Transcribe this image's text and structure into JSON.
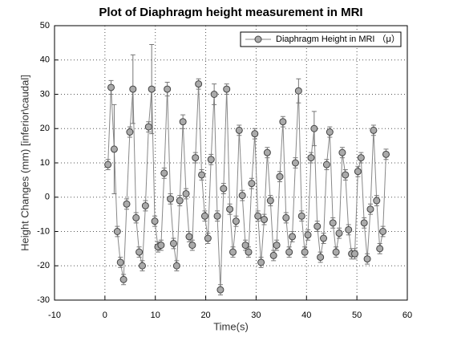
{
  "chart_data": {
    "type": "line",
    "title": "Plot of Diaphragm height measurement in MRI",
    "xlabel": "Time(s)",
    "ylabel": "Height Changes (mm) [inferior\\caudal]",
    "x": [
      0.6,
      1.22,
      1.84,
      2.46,
      3.08,
      3.7,
      4.32,
      4.94,
      5.56,
      6.18,
      6.8,
      7.42,
      8.04,
      8.66,
      9.28,
      9.9,
      10.52,
      11.14,
      11.76,
      12.38,
      13.0,
      13.62,
      14.24,
      14.86,
      15.48,
      16.1,
      16.72,
      17.34,
      17.96,
      18.58,
      19.2,
      19.82,
      20.44,
      21.06,
      21.68,
      22.3,
      22.92,
      23.54,
      24.16,
      24.78,
      25.4,
      26.02,
      26.64,
      27.26,
      27.88,
      28.5,
      29.12,
      29.74,
      30.36,
      30.98,
      31.6,
      32.22,
      32.84,
      33.46,
      34.08,
      34.7,
      35.32,
      35.94,
      36.56,
      37.18,
      37.8,
      38.42,
      39.04,
      39.66,
      40.28,
      40.9,
      41.52,
      42.14,
      42.76,
      43.38,
      44.0,
      44.62,
      45.24,
      45.86,
      46.48,
      47.1,
      47.72,
      48.34,
      48.96,
      49.58,
      50.2,
      50.82,
      51.44,
      52.06,
      52.68,
      53.3,
      53.92,
      54.54,
      55.16,
      55.78
    ],
    "series": [
      {
        "name": "Diaphragm Height in MRI （μ）",
        "color": "#aaaaaa",
        "values": [
          9.5,
          32,
          14,
          -10,
          -19,
          -24,
          -2,
          19,
          31.5,
          -6,
          -16,
          -20,
          -2.5,
          20.5,
          31.5,
          -7,
          -14.5,
          -14,
          7,
          31.5,
          -0.5,
          -13.5,
          -20,
          -1,
          22,
          1,
          -11.5,
          -14,
          11.5,
          33,
          6.5,
          -5.5,
          -12,
          11,
          30,
          -5.5,
          -27,
          2.5,
          31.5,
          -3.5,
          -16,
          -7,
          19.5,
          0.5,
          -14,
          -16,
          4,
          18.5,
          -5.5,
          -19,
          -6.5,
          13,
          -1,
          -17,
          -14,
          6,
          22,
          -6,
          -16,
          -11.5,
          10,
          31,
          -5.5,
          -16,
          -11,
          11.5,
          20,
          -8.5,
          -17.5,
          -12,
          9.5,
          19,
          -7.5,
          -16,
          -10.5,
          13,
          6.5,
          -9.5,
          -16.5,
          -16.5,
          7.5,
          11.5,
          -7.5,
          -18,
          -3.5,
          19.5,
          -1,
          -15,
          -10,
          12.5
        ],
        "errors": [
          1.5,
          2,
          13,
          1.5,
          1.5,
          1.5,
          1.5,
          1.5,
          10,
          1.5,
          1.5,
          1.5,
          1.5,
          1.5,
          13,
          1.5,
          1.5,
          1.5,
          1.5,
          2,
          1.5,
          1.5,
          1.5,
          1.5,
          2,
          1.5,
          1.5,
          1.5,
          1.5,
          1.5,
          1.5,
          1.5,
          1.5,
          1.5,
          3,
          1.5,
          1.5,
          1.5,
          1.5,
          1.5,
          1.5,
          1.5,
          1.5,
          1.5,
          1.5,
          1.5,
          1.5,
          1.5,
          1.5,
          1.5,
          1.5,
          1.5,
          1.5,
          1.5,
          1.5,
          1.5,
          1.5,
          1.5,
          1.5,
          1.5,
          1.5,
          3.5,
          1.5,
          1.5,
          1.5,
          1.5,
          5,
          1.5,
          1.5,
          1.5,
          1.5,
          1.5,
          1.5,
          1.5,
          1.5,
          1.5,
          1.5,
          1.5,
          1.5,
          1.5,
          1.5,
          1.5,
          1.5,
          1.5,
          1.5,
          1.5,
          1.5,
          1.5,
          1.5,
          1.5
        ]
      }
    ],
    "xlim": [
      -10,
      60
    ],
    "xticks": [
      -10,
      0,
      10,
      20,
      30,
      40,
      50,
      60
    ],
    "ylim": [
      -30,
      50
    ],
    "yticks": [
      -30,
      -20,
      -10,
      0,
      10,
      20,
      30,
      40,
      50
    ],
    "grid": true,
    "legend": "upper right"
  }
}
